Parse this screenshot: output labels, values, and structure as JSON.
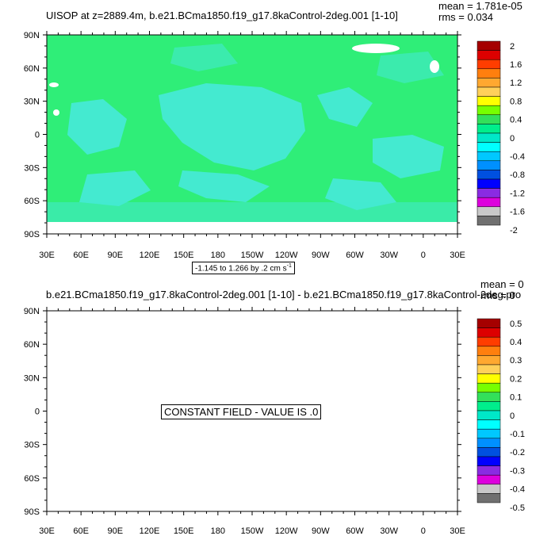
{
  "panel1": {
    "title": "UISOP at z=2889.4m, b.e21.BCma1850.f19_g17.8kaControl-2deg.001 [1-10]",
    "mean_label": "mean = 1.781e-05",
    "rms_label": "rms = 0.034",
    "range_label": "-1.145 to 1.266 by .2 cm s",
    "range_sup": "-1",
    "lat_labels": [
      "90N",
      "60N",
      "30N",
      "0",
      "30S",
      "60S",
      "90S"
    ],
    "lon_labels": [
      "30E",
      "60E",
      "90E",
      "120E",
      "150E",
      "180",
      "150W",
      "120W",
      "90W",
      "60W",
      "30W",
      "0",
      "30E"
    ],
    "colorbar_labels": [
      "2",
      "1.6",
      "1.2",
      "0.8",
      "0.4",
      "0",
      "-0.4",
      "-0.8",
      "-1.2",
      "-1.6",
      "-2"
    ]
  },
  "panel2": {
    "title": "b.e21.BCma1850.f19_g17.8kaControl-2deg.001 [1-10] - b.e21.BCma1850.f19_g17.8kaControl-2deg.pro",
    "mean_label": "mean = 0",
    "rms_label": "rms = 0",
    "constant_label": "CONSTANT FIELD - VALUE IS .0",
    "lat_labels": [
      "90N",
      "60N",
      "30N",
      "0",
      "30S",
      "60S",
      "90S"
    ],
    "lon_labels": [
      "30E",
      "60E",
      "90E",
      "120E",
      "150E",
      "180",
      "150W",
      "120W",
      "90W",
      "60W",
      "30W",
      "0",
      "30E"
    ],
    "colorbar_labels": [
      "0.5",
      "0.4",
      "0.3",
      "0.2",
      "0.1",
      "0",
      "-0.1",
      "-0.2",
      "-0.3",
      "-0.4",
      "-0.5"
    ]
  },
  "colors": {
    "palette": [
      "#a50000",
      "#dd0000",
      "#ff3d00",
      "#ff7f0e",
      "#ffa830",
      "#ffd05a",
      "#ffff00",
      "#77ff00",
      "#33e05a",
      "#00ee8c",
      "#00e8c8",
      "#00ffff",
      "#00c8ff",
      "#0090ff",
      "#0050e0",
      "#0000ff",
      "#8a2be2",
      "#dd00dd",
      "#c8c8c8",
      "#707070"
    ],
    "field": "#2fee78",
    "near_zero": "#44ead0"
  }
}
